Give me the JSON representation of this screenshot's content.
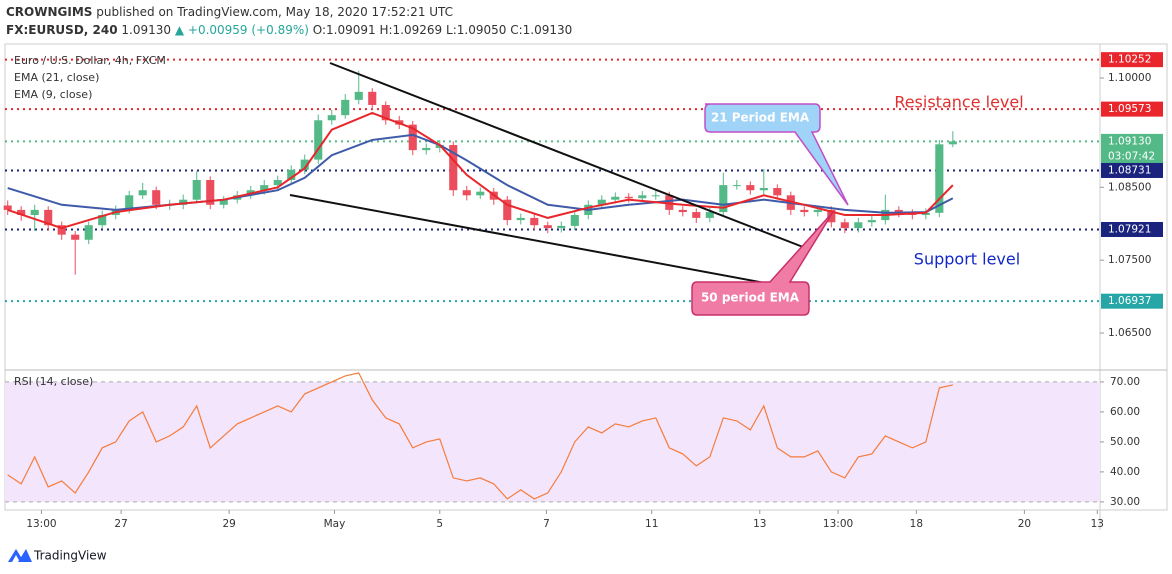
{
  "header": {
    "author": "CROWNGIMS",
    "published": "published on TradingView.com, May 18, 2020 17:52:21 UTC",
    "symbol": "FX:EURUSD, 240",
    "price": "1.09130",
    "change": "▲ +0.00959 (+0.89%)",
    "open": "O:1.09091",
    "high": "H:1.09269",
    "low": "L:1.09050",
    "close": "C:1.09130"
  },
  "footer": {
    "brand": "TradingView"
  },
  "chart_data": [
    {
      "type": "candlestick",
      "title": "Euro / U.S. Dollar, 4h, FXCM",
      "up_color": "#53b987",
      "down_color": "#eb4d5c",
      "xlim": [
        -0.2,
        80.9
      ],
      "xticks": [
        {
          "value": 2.5,
          "label": "13:00"
        },
        {
          "value": 8.4,
          "label": "27"
        },
        {
          "value": 16.4,
          "label": "29"
        },
        {
          "value": 24.2,
          "label": "May"
        },
        {
          "value": 32,
          "label": "5"
        },
        {
          "value": 39.9,
          "label": "7"
        },
        {
          "value": 47.7,
          "label": "11"
        },
        {
          "value": 55.7,
          "label": "13"
        },
        {
          "value": 61.5,
          "label": "13:00"
        },
        {
          "value": 67.3,
          "label": "18"
        },
        {
          "value": 75.3,
          "label": "20"
        },
        {
          "value": 80.7,
          "label": "13"
        }
      ],
      "ylim": [
        1.0602,
        1.10453
      ],
      "yticks": [
        {
          "value": 1.065,
          "label": "1.06500"
        },
        {
          "value": 1.075,
          "label": "1.07500"
        },
        {
          "value": 1.085,
          "label": "1.08500"
        },
        {
          "value": 1.1,
          "label": "1.10000"
        }
      ],
      "grid": false,
      "ohlc": [
        [
          1.0825,
          1.0832,
          1.0812,
          1.0819
        ],
        [
          1.0819,
          1.0824,
          1.0804,
          1.0812
        ],
        [
          1.0812,
          1.0826,
          1.079,
          1.0819
        ],
        [
          1.0819,
          1.0824,
          1.0791,
          1.0798
        ],
        [
          1.0798,
          1.0803,
          1.0778,
          1.0785
        ],
        [
          1.0785,
          1.079,
          1.073,
          1.0778
        ],
        [
          1.0778,
          1.0803,
          1.0772,
          1.0798
        ],
        [
          1.0798,
          1.0818,
          1.0793,
          1.0812
        ],
        [
          1.0812,
          1.0825,
          1.0806,
          1.0819
        ],
        [
          1.0819,
          1.0845,
          1.0814,
          1.0839
        ],
        [
          1.0839,
          1.0856,
          1.0834,
          1.0846
        ],
        [
          1.0846,
          1.0851,
          1.082,
          1.0826
        ],
        [
          1.0826,
          1.0833,
          1.0819,
          1.0826
        ],
        [
          1.0826,
          1.084,
          1.082,
          1.0833
        ],
        [
          1.0833,
          1.0872,
          1.0828,
          1.086
        ],
        [
          1.086,
          1.0865,
          1.082,
          1.0826
        ],
        [
          1.0826,
          1.0838,
          1.0821,
          1.0833
        ],
        [
          1.0833,
          1.0845,
          1.0828,
          1.0839
        ],
        [
          1.0839,
          1.0852,
          1.0834,
          1.0846
        ],
        [
          1.0846,
          1.086,
          1.084,
          1.0853
        ],
        [
          1.0853,
          1.0866,
          1.0847,
          1.086
        ],
        [
          1.086,
          1.088,
          1.0855,
          1.0874
        ],
        [
          1.0874,
          1.0895,
          1.0868,
          1.0888
        ],
        [
          1.0888,
          1.095,
          1.0882,
          1.0942
        ],
        [
          1.0942,
          1.0956,
          1.0936,
          1.0949
        ],
        [
          1.0949,
          1.0978,
          1.0944,
          1.097
        ],
        [
          1.097,
          1.101,
          1.0964,
          1.0981
        ],
        [
          1.0981,
          1.0986,
          1.0956,
          1.0963
        ],
        [
          1.0963,
          1.0968,
          1.0936,
          1.0942
        ],
        [
          1.0942,
          1.0948,
          1.093,
          1.0936
        ],
        [
          1.0936,
          1.0941,
          1.0894,
          1.0901
        ],
        [
          1.0901,
          1.091,
          1.0895,
          1.0904
        ],
        [
          1.0904,
          1.0915,
          1.0898,
          1.0908
        ],
        [
          1.0908,
          1.0913,
          1.0838,
          1.0846
        ],
        [
          1.0846,
          1.0852,
          1.0832,
          1.0839
        ],
        [
          1.0839,
          1.085,
          1.0834,
          1.0844
        ],
        [
          1.0844,
          1.0849,
          1.0826,
          1.0833
        ],
        [
          1.0833,
          1.0838,
          1.0798,
          1.0805
        ],
        [
          1.0805,
          1.0814,
          1.0799,
          1.0808
        ],
        [
          1.0808,
          1.0813,
          1.0791,
          1.0798
        ],
        [
          1.0798,
          1.0803,
          1.0787,
          1.0794
        ],
        [
          1.0794,
          1.0803,
          1.0788,
          1.0797
        ],
        [
          1.0797,
          1.0818,
          1.0791,
          1.0812
        ],
        [
          1.0812,
          1.0832,
          1.0806,
          1.0826
        ],
        [
          1.0826,
          1.0839,
          1.082,
          1.0833
        ],
        [
          1.0833,
          1.0843,
          1.0828,
          1.0837
        ],
        [
          1.0837,
          1.0842,
          1.0829,
          1.0835
        ],
        [
          1.0835,
          1.0845,
          1.083,
          1.0839
        ],
        [
          1.0839,
          1.0846,
          1.0833,
          1.0839
        ],
        [
          1.0839,
          1.0844,
          1.0812,
          1.0819
        ],
        [
          1.0819,
          1.0824,
          1.081,
          1.0816
        ],
        [
          1.0816,
          1.0821,
          1.0801,
          1.0808
        ],
        [
          1.0808,
          1.0822,
          1.0802,
          1.0816
        ],
        [
          1.0816,
          1.087,
          1.081,
          1.0853
        ],
        [
          1.0853,
          1.086,
          1.0847,
          1.0853
        ],
        [
          1.0853,
          1.0858,
          1.084,
          1.0846
        ],
        [
          1.0846,
          1.0875,
          1.084,
          1.0849
        ],
        [
          1.0849,
          1.0854,
          1.0833,
          1.0839
        ],
        [
          1.0839,
          1.0844,
          1.0812,
          1.0819
        ],
        [
          1.0819,
          1.0824,
          1.081,
          1.0816
        ],
        [
          1.0816,
          1.0825,
          1.081,
          1.0819
        ],
        [
          1.0819,
          1.0824,
          1.0795,
          1.0802
        ],
        [
          1.0802,
          1.0807,
          1.0787,
          1.0794
        ],
        [
          1.0794,
          1.0808,
          1.0788,
          1.0802
        ],
        [
          1.0802,
          1.0811,
          1.0796,
          1.0805
        ],
        [
          1.0805,
          1.084,
          1.0799,
          1.0819
        ],
        [
          1.0819,
          1.0824,
          1.0809,
          1.0815
        ],
        [
          1.0815,
          1.082,
          1.0806,
          1.0812
        ],
        [
          1.0812,
          1.0821,
          1.0806,
          1.0815
        ],
        [
          1.0815,
          1.0915,
          1.0809,
          1.0909
        ],
        [
          1.0909,
          1.0927,
          1.0905,
          1.0913
        ]
      ],
      "series": [
        {
          "name": "EMA (21, close)",
          "color": "#3f5aa8",
          "x": [
            0,
            4,
            8,
            12,
            16,
            20,
            22,
            24,
            27,
            30,
            32,
            34,
            37,
            40,
            43,
            46,
            50,
            53,
            56,
            59,
            62,
            65,
            68,
            70
          ],
          "values": [
            1.0849,
            1.0826,
            1.0819,
            1.0826,
            1.0833,
            1.0846,
            1.0863,
            1.0894,
            1.0915,
            1.0922,
            1.0908,
            1.0887,
            1.0853,
            1.0826,
            1.0819,
            1.0826,
            1.0833,
            1.0826,
            1.0833,
            1.0826,
            1.0819,
            1.0815,
            1.0816,
            1.0835
          ]
        },
        {
          "name": "EMA (9, close)",
          "color": "#e8262b",
          "x": [
            0,
            4,
            8,
            12,
            16,
            20,
            22,
            24,
            27,
            30,
            32,
            34,
            37,
            40,
            43,
            46,
            50,
            53,
            56,
            59,
            62,
            65,
            68,
            70
          ],
          "values": [
            1.0819,
            1.0794,
            1.0816,
            1.0826,
            1.0833,
            1.085,
            1.0876,
            1.0929,
            1.0952,
            1.0931,
            1.0908,
            1.0867,
            1.0826,
            1.0808,
            1.0822,
            1.0833,
            1.0826,
            1.0822,
            1.0839,
            1.0826,
            1.0812,
            1.0812,
            1.0815,
            1.0853
          ]
        }
      ],
      "price_lines": [
        {
          "value": 1.10252,
          "label": "1.10252",
          "color": "#e8262b"
        },
        {
          "value": 1.09573,
          "label": "1.09573",
          "color": "#e8262b"
        },
        {
          "value": 1.0913,
          "label": "1.09130",
          "color": "#53b987",
          "countdown": "03:07:42"
        },
        {
          "value": 1.08731,
          "label": "1.08731",
          "color": "#1a237e"
        },
        {
          "value": 1.07921,
          "label": "1.07921",
          "color": "#1a237e"
        },
        {
          "value": 1.06937,
          "label": "1.06937",
          "color": "#26a6a6"
        }
      ],
      "annotations": {
        "resistance": "Resistance level",
        "support": "Support level",
        "ema21": "21 Period EMA",
        "ema50": "50 period EMA"
      }
    },
    {
      "type": "line",
      "series": [
        {
          "name": "RSI (14, close)",
          "color": "#f57c3c",
          "values": [
            39,
            36,
            45,
            35,
            37,
            33,
            40,
            48,
            50,
            57,
            60,
            50,
            52,
            55,
            62,
            48,
            52,
            56,
            58,
            60,
            62,
            60,
            66,
            68,
            70,
            72,
            73,
            64,
            58,
            56,
            48,
            50,
            51,
            38,
            37,
            38,
            36,
            31,
            34,
            31,
            33,
            40,
            50,
            55,
            53,
            56,
            55,
            57,
            58,
            48,
            46,
            42,
            45,
            58,
            57,
            54,
            62,
            48,
            45,
            45,
            47,
            40,
            38,
            45,
            46,
            52,
            50,
            48,
            50,
            68,
            69
          ]
        }
      ],
      "xlim": [
        -0.2,
        80.9
      ],
      "ylim": [
        27.3,
        73.3
      ],
      "band": [
        30,
        70
      ],
      "band_color": "#f3e5fc",
      "yticks": [
        {
          "value": 30,
          "label": "30.00"
        },
        {
          "value": 40,
          "label": "40.00"
        },
        {
          "value": 50,
          "label": "50.00"
        },
        {
          "value": 60,
          "label": "60.00"
        },
        {
          "value": 70,
          "label": "70.00"
        }
      ]
    }
  ]
}
